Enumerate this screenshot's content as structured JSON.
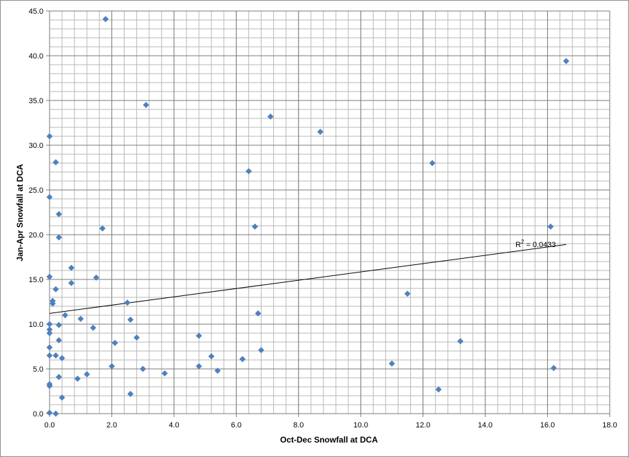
{
  "chart_data": {
    "type": "scatter",
    "xlabel": "Oct-Dec Snowfall at DCA",
    "ylabel": "Jan-Apr Snowfall at DCA",
    "xlim": [
      0,
      18
    ],
    "ylim": [
      0,
      45
    ],
    "x_major": 2,
    "y_major": 5,
    "x_minor": 0.4,
    "y_minor": 1,
    "x_tick_labels": [
      "0.0",
      "2.0",
      "4.0",
      "6.0",
      "8.0",
      "10.0",
      "12.0",
      "14.0",
      "16.0",
      "18.0"
    ],
    "y_tick_labels": [
      "0.0",
      "5.0",
      "10.0",
      "15.0",
      "20.0",
      "25.0",
      "30.0",
      "35.0",
      "40.0",
      "45.0"
    ],
    "grid": true,
    "marker_color": "#4f81bd",
    "series": [
      {
        "points": [
          [
            1.8,
            44.1
          ],
          [
            16.6,
            39.4
          ],
          [
            3.1,
            34.5
          ],
          [
            7.1,
            33.2
          ],
          [
            8.7,
            31.5
          ],
          [
            0.0,
            31.0
          ],
          [
            0.2,
            28.1
          ],
          [
            12.3,
            28.0
          ],
          [
            6.4,
            27.1
          ],
          [
            0.0,
            24.2
          ],
          [
            0.3,
            22.3
          ],
          [
            6.6,
            20.9
          ],
          [
            16.1,
            20.9
          ],
          [
            1.7,
            20.7
          ],
          [
            0.3,
            19.7
          ],
          [
            0.7,
            16.3
          ],
          [
            0.0,
            15.3
          ],
          [
            1.5,
            15.2
          ],
          [
            0.7,
            14.6
          ],
          [
            0.2,
            13.9
          ],
          [
            11.5,
            13.4
          ],
          [
            0.1,
            12.6
          ],
          [
            0.1,
            12.3
          ],
          [
            2.5,
            12.4
          ],
          [
            6.7,
            11.2
          ],
          [
            0.5,
            11.0
          ],
          [
            1.0,
            10.6
          ],
          [
            2.6,
            10.5
          ],
          [
            0.0,
            10.0
          ],
          [
            0.3,
            9.9
          ],
          [
            1.4,
            9.6
          ],
          [
            0.0,
            9.4
          ],
          [
            0.0,
            9.0
          ],
          [
            4.8,
            8.7
          ],
          [
            2.8,
            8.5
          ],
          [
            0.3,
            8.2
          ],
          [
            13.2,
            8.1
          ],
          [
            2.1,
            7.9
          ],
          [
            0.0,
            7.4
          ],
          [
            6.8,
            7.1
          ],
          [
            0.0,
            6.5
          ],
          [
            0.2,
            6.5
          ],
          [
            5.2,
            6.4
          ],
          [
            0.4,
            6.2
          ],
          [
            6.2,
            6.1
          ],
          [
            11.0,
            5.6
          ],
          [
            2.0,
            5.3
          ],
          [
            4.8,
            5.3
          ],
          [
            16.2,
            5.1
          ],
          [
            3.0,
            5.0
          ],
          [
            5.4,
            4.8
          ],
          [
            3.7,
            4.5
          ],
          [
            1.2,
            4.4
          ],
          [
            0.3,
            4.1
          ],
          [
            0.9,
            3.9
          ],
          [
            0.0,
            3.3
          ],
          [
            0.0,
            3.1
          ],
          [
            12.5,
            2.7
          ],
          [
            2.6,
            2.2
          ],
          [
            0.4,
            1.8
          ],
          [
            0.0,
            0.1
          ],
          [
            0.2,
            0.0
          ]
        ]
      }
    ],
    "trendline": {
      "type": "linear",
      "x": [
        0,
        16.6
      ],
      "y": [
        11.2,
        18.9
      ],
      "color": "#000000"
    },
    "annotations": [
      {
        "text_prefix": "R",
        "text_sup": "2",
        "text_value": " = 0.0433"
      }
    ]
  }
}
